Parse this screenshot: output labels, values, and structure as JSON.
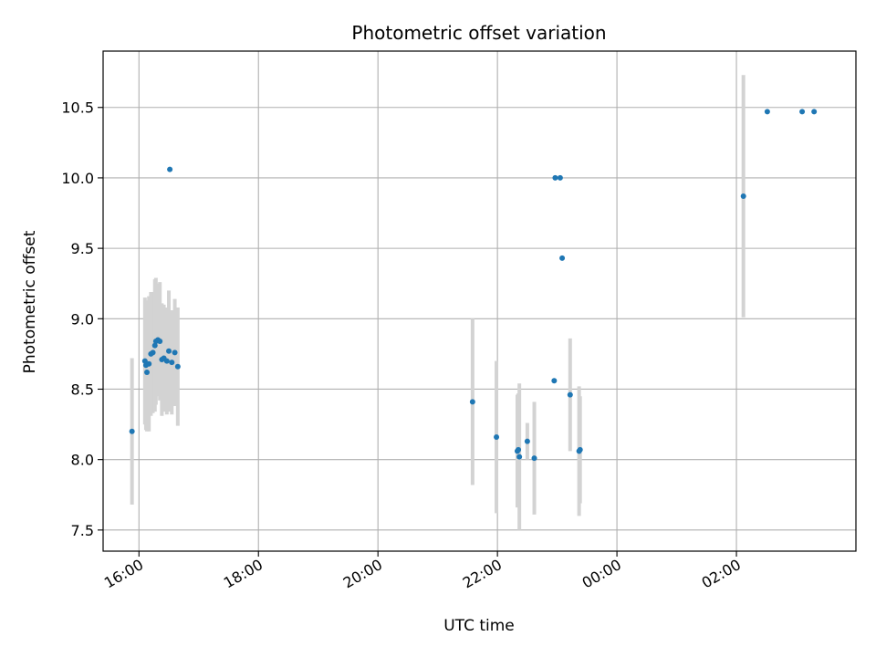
{
  "chart_data": {
    "type": "scatter",
    "title": "Photometric offset variation",
    "xlabel": "UTC time",
    "ylabel": "Photometric offset",
    "x_axis_format": "time HH:MM, labels rotated",
    "x_start_time": "15:21",
    "xlim_hours": [
      -0.6,
      12.0
    ],
    "ylim": [
      7.35,
      10.9
    ],
    "x_ticks": [
      {
        "label": "16:00",
        "hours": 0
      },
      {
        "label": "18:00",
        "hours": 2
      },
      {
        "label": "20:00",
        "hours": 4
      },
      {
        "label": "22:00",
        "hours": 6
      },
      {
        "label": "00:00",
        "hours": 8
      },
      {
        "label": "02:00",
        "hours": 10
      }
    ],
    "y_ticks": [
      {
        "label": "7.5",
        "value": 7.5
      },
      {
        "label": "8.0",
        "value": 8.0
      },
      {
        "label": "8.5",
        "value": 8.5
      },
      {
        "label": "9.0",
        "value": 9.0
      },
      {
        "label": "9.5",
        "value": 9.5
      },
      {
        "label": "10.0",
        "value": 10.0
      },
      {
        "label": "10.5",
        "value": 10.5
      }
    ],
    "grid": true,
    "colors": {
      "points": "#1f77b4",
      "error_bars": "#d3d3d3",
      "grid": "#b0b0b0"
    },
    "series": [
      {
        "name": "offset",
        "points": [
          {
            "time": "15:53",
            "y": 8.2,
            "err": 0.52
          },
          {
            "time": "16:06",
            "y": 8.7,
            "err": 0.45
          },
          {
            "time": "16:07",
            "y": 8.67,
            "err": 0.46
          },
          {
            "time": "16:08",
            "y": 8.62,
            "err": 0.42
          },
          {
            "time": "16:10",
            "y": 8.68,
            "err": 0.48
          },
          {
            "time": "16:12",
            "y": 8.75,
            "err": 0.44
          },
          {
            "time": "16:14",
            "y": 8.76,
            "err": 0.43
          },
          {
            "time": "16:16",
            "y": 8.81,
            "err": 0.47
          },
          {
            "time": "16:17",
            "y": 8.84,
            "err": 0.45
          },
          {
            "time": "16:19",
            "y": 8.85,
            "err": 0.4
          },
          {
            "time": "16:21",
            "y": 8.84,
            "err": 0.42
          },
          {
            "time": "16:23",
            "y": 8.71,
            "err": 0.4
          },
          {
            "time": "16:25",
            "y": 8.72,
            "err": 0.38
          },
          {
            "time": "16:28",
            "y": 8.7,
            "err": 0.38
          },
          {
            "time": "16:30",
            "y": 8.77,
            "err": 0.43
          },
          {
            "time": "16:31",
            "y": 10.06,
            "err": 0
          },
          {
            "time": "16:33",
            "y": 8.69,
            "err": 0.37
          },
          {
            "time": "16:36",
            "y": 8.76,
            "err": 0.38
          },
          {
            "time": "16:39",
            "y": 8.66,
            "err": 0.42
          },
          {
            "time": "21:35",
            "y": 8.41,
            "err": 0.59
          },
          {
            "time": "21:59",
            "y": 8.16,
            "err": 0.54
          },
          {
            "time": "22:20",
            "y": 8.06,
            "err": 0.4
          },
          {
            "time": "22:21",
            "y": 8.07,
            "err": 0.4
          },
          {
            "time": "22:22",
            "y": 8.02,
            "err": 0.52
          },
          {
            "time": "22:30",
            "y": 8.13,
            "err": 0.13
          },
          {
            "time": "22:37",
            "y": 8.01,
            "err": 0.4
          },
          {
            "time": "22:57",
            "y": 8.56,
            "err": 0
          },
          {
            "time": "22:58",
            "y": 10.0,
            "err": 0
          },
          {
            "time": "23:03",
            "y": 10.0,
            "err": 0
          },
          {
            "time": "23:05",
            "y": 9.43,
            "err": 0
          },
          {
            "time": "23:13",
            "y": 8.46,
            "err": 0.4
          },
          {
            "time": "23:22",
            "y": 8.06,
            "err": 0.46
          },
          {
            "time": "23:23",
            "y": 8.07,
            "err": 0.38
          },
          {
            "time": "02:07",
            "y": 9.87,
            "err": 0.86
          },
          {
            "time": "02:31",
            "y": 10.47,
            "err": 0
          },
          {
            "time": "03:06",
            "y": 10.47,
            "err": 0
          },
          {
            "time": "03:18",
            "y": 10.47,
            "err": 0
          }
        ]
      }
    ]
  }
}
